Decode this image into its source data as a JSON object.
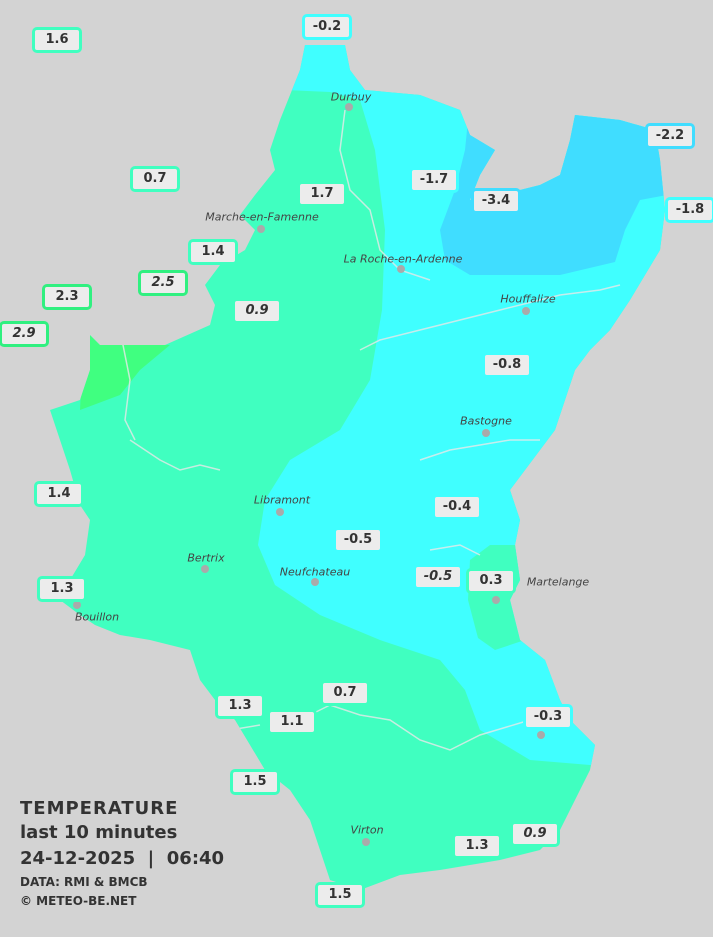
{
  "legend": {
    "title": "TEMPERATURE",
    "period": "last 10 minutes",
    "datetime": "24-12-2025  |  06:40",
    "source": "DATA: RMI & BMCB",
    "copyright": "© METEO-BE.NET"
  },
  "colors": {
    "background": "#d3d3d3",
    "band_0_to_2": "#40ffc0",
    "band_above_2": "#40ff80",
    "band_minus2_to_0": "#40ffff",
    "band_below_minus2": "#40ddff"
  },
  "cities": [
    {
      "name": "Durbuy"
    },
    {
      "name": "Marche-en-Famenne"
    },
    {
      "name": "La Roche-en-Ardenne"
    },
    {
      "name": "Houffalize"
    },
    {
      "name": "Bastogne"
    },
    {
      "name": "Libramont"
    },
    {
      "name": "Bertrix"
    },
    {
      "name": "Neufchateau"
    },
    {
      "name": "Bouillon"
    },
    {
      "name": "Martelange"
    },
    {
      "name": "Virton"
    }
  ],
  "stations": [
    {
      "value": "-0.2"
    },
    {
      "value": "1.6"
    },
    {
      "value": "0.7"
    },
    {
      "value": "1.7"
    },
    {
      "value": "-1.7"
    },
    {
      "value": "-3.4"
    },
    {
      "value": "-2.2"
    },
    {
      "value": "-1.8"
    },
    {
      "value": "1.4"
    },
    {
      "value": "2.5"
    },
    {
      "value": "2.3"
    },
    {
      "value": "2.9"
    },
    {
      "value": "0.9"
    },
    {
      "value": "-0.8"
    },
    {
      "value": "1.4"
    },
    {
      "value": "-0.4"
    },
    {
      "value": "-0.5"
    },
    {
      "value": "-0.5"
    },
    {
      "value": "0.3"
    },
    {
      "value": "1.3"
    },
    {
      "value": "0.7"
    },
    {
      "value": "1.3"
    },
    {
      "value": "1.1"
    },
    {
      "value": "-0.3"
    },
    {
      "value": "1.5"
    },
    {
      "value": "1.3"
    },
    {
      "value": "0.9"
    },
    {
      "value": "1.5"
    }
  ]
}
